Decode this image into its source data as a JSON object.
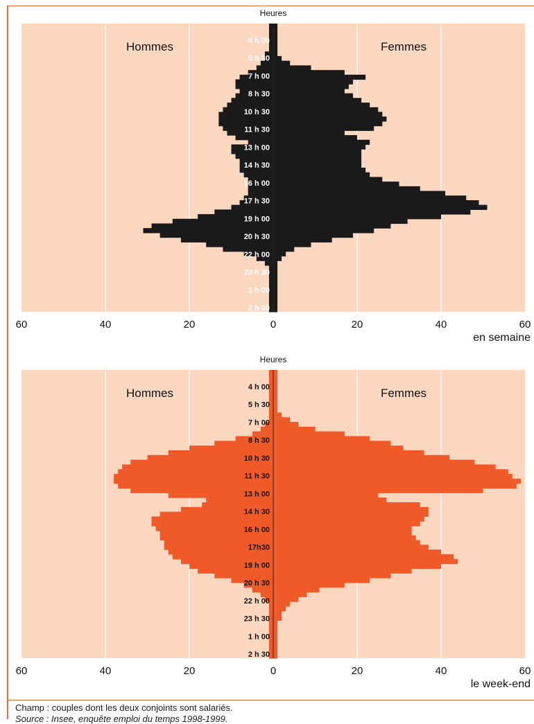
{
  "footer": {
    "champ": "Champ : couples dont les deux conjoints sont salariés.",
    "source": "Source : Insee, enquête emploi du temps 1998-1999."
  },
  "colors": {
    "panel_bg": "#fcd7c0",
    "weekday_fill": "#1a1a1a",
    "weekend_fill": "#f05a28",
    "accent_line": "#ef6a3a"
  },
  "chart_data": [
    {
      "type": "bar",
      "orientation": "horizontal-pyramid",
      "y_title": "Heures",
      "left_label": "Hommes",
      "right_label": "Femmes",
      "caption": "en semaine",
      "x_ticks": [
        "60",
        "40",
        "20",
        "0",
        "20",
        "40",
        "60"
      ],
      "xlim": [
        -60,
        60
      ],
      "y_tick_labels": [
        "4 h 00",
        "5 h 30",
        "7 h 00",
        "8 h 30",
        "10 h 30",
        "11 h 30",
        "13 h 00",
        "14 h 30",
        "16 h 00",
        "17 h 30",
        "19 h 00",
        "20 h 30",
        "22 h 00",
        "23 h 30",
        "1 h 00",
        "2 h 30"
      ],
      "grid": true,
      "series": [
        {
          "name": "Hommes",
          "values": [
            1,
            1,
            1,
            1,
            1,
            1,
            2,
            2,
            3,
            4,
            6,
            8,
            9,
            9,
            8,
            9,
            10,
            11,
            12,
            13,
            13,
            13,
            12,
            11,
            9,
            6,
            10,
            10,
            9,
            8,
            8,
            8,
            7,
            6,
            6,
            6,
            6,
            7,
            8,
            10,
            14,
            18,
            24,
            29,
            31,
            27,
            22,
            16,
            12,
            7,
            4,
            2,
            1,
            1,
            1,
            1,
            1,
            1,
            1,
            1,
            1,
            1
          ]
        },
        {
          "name": "Femmes",
          "values": [
            1,
            1,
            1,
            1,
            1,
            1,
            1,
            2,
            4,
            9,
            17,
            22,
            19,
            18,
            17,
            19,
            21,
            23,
            25,
            26,
            27,
            26,
            24,
            17,
            20,
            23,
            22,
            21,
            21,
            21,
            21,
            22,
            23,
            26,
            30,
            35,
            41,
            46,
            49,
            51,
            47,
            40,
            32,
            28,
            24,
            19,
            14,
            9,
            5,
            3,
            2,
            1,
            1,
            1,
            1,
            1,
            1,
            1,
            1,
            1,
            1,
            1
          ]
        }
      ]
    },
    {
      "type": "bar",
      "orientation": "horizontal-pyramid",
      "y_title": "Heures",
      "left_label": "Hommes",
      "right_label": "Femmes",
      "caption": "le week-end",
      "x_ticks": [
        "60",
        "40",
        "20",
        "0",
        "20",
        "40",
        "60"
      ],
      "xlim": [
        -60,
        60
      ],
      "y_tick_labels": [
        "4 h 00",
        "5 h 30",
        "7 h 00",
        "8 h 30",
        "10 h 30",
        "11 h 30",
        "13 h 00",
        "14 h 30",
        "16 h 00",
        "17h30",
        "19 h 00",
        "20 h 30",
        "22 h 00",
        "23 h 30",
        "1 h 00",
        "2 h 30"
      ],
      "grid": true,
      "series": [
        {
          "name": "Hommes",
          "values": [
            1,
            1,
            1,
            1,
            1,
            1,
            1,
            1,
            1,
            1,
            1,
            2,
            3,
            5,
            9,
            14,
            20,
            25,
            30,
            34,
            36,
            37,
            38,
            38,
            37,
            34,
            25,
            16,
            17,
            22,
            27,
            29,
            29,
            28,
            27,
            27,
            26,
            26,
            25,
            24,
            22,
            20,
            18,
            14,
            10,
            7,
            5,
            3,
            2,
            1,
            1,
            1,
            1,
            1,
            1,
            1,
            1,
            1,
            1,
            1,
            1
          ]
        },
        {
          "name": "Femmes",
          "values": [
            1,
            1,
            1,
            1,
            1,
            1,
            1,
            1,
            1,
            2,
            4,
            6,
            10,
            17,
            23,
            28,
            31,
            36,
            42,
            48,
            53,
            56,
            57,
            59,
            58,
            50,
            25,
            27,
            35,
            37,
            37,
            36,
            35,
            33,
            33,
            34,
            35,
            37,
            40,
            43,
            44,
            40,
            33,
            28,
            23,
            17,
            11,
            8,
            6,
            4,
            3,
            2,
            2,
            1,
            1,
            1,
            1,
            1,
            1,
            1,
            1
          ]
        }
      ]
    }
  ]
}
